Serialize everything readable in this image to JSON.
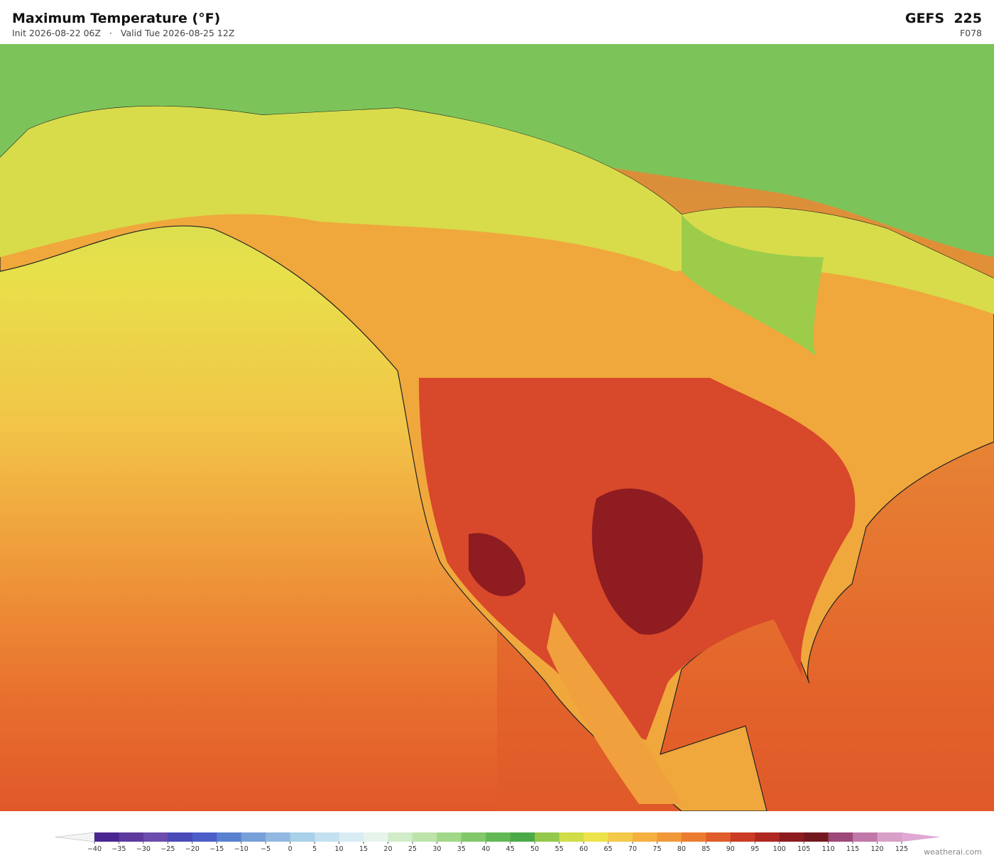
{
  "header": {
    "title": "Maximum Temperature  (°F)",
    "init": "Init 2026-08-22 06Z",
    "separator": "·",
    "valid": "Valid Tue 2026-08-25 12Z",
    "model": "GEFS  225",
    "forecast_hour": "F078"
  },
  "colorbar": {
    "ticks": [
      {
        "value": -40,
        "label": "−40"
      },
      {
        "value": -35,
        "label": "−35"
      },
      {
        "value": -30,
        "label": "−30"
      },
      {
        "value": -25,
        "label": "−25"
      },
      {
        "value": -20,
        "label": "−20"
      },
      {
        "value": -15,
        "label": "−15"
      },
      {
        "value": -10,
        "label": "−10"
      },
      {
        "value": -5,
        "label": "−5"
      },
      0,
      5,
      10,
      15,
      20,
      25,
      30,
      35,
      40,
      45,
      50,
      55,
      60,
      65,
      70,
      75,
      80,
      85,
      90,
      95,
      100,
      105,
      110,
      115,
      120,
      125
    ],
    "colors": [
      "#4a2690",
      "#5e3a9e",
      "#6c4cac",
      "#4a4ab8",
      "#4c5ec8",
      "#5a80d0",
      "#78a0d8",
      "#90b8e0",
      "#a8d0e8",
      "#c2e0f0",
      "#d8ecf4",
      "#e6f4ec",
      "#d0ecc8",
      "#bce4a8",
      "#a0d888",
      "#80c868",
      "#62b854",
      "#4aaa48",
      "#94c84a",
      "#d0dc48",
      "#ece24a",
      "#f4c848",
      "#f4b040",
      "#f09838",
      "#ec7c30",
      "#e05c2a",
      "#cc3c24",
      "#b02822",
      "#8c1c20",
      "#741820",
      "#9c4878",
      "#c078a8",
      "#d8a0c8"
    ],
    "under_color": "#f4f4f4",
    "over_color": "#e0a8d4"
  },
  "credit": "weatherai.com"
}
